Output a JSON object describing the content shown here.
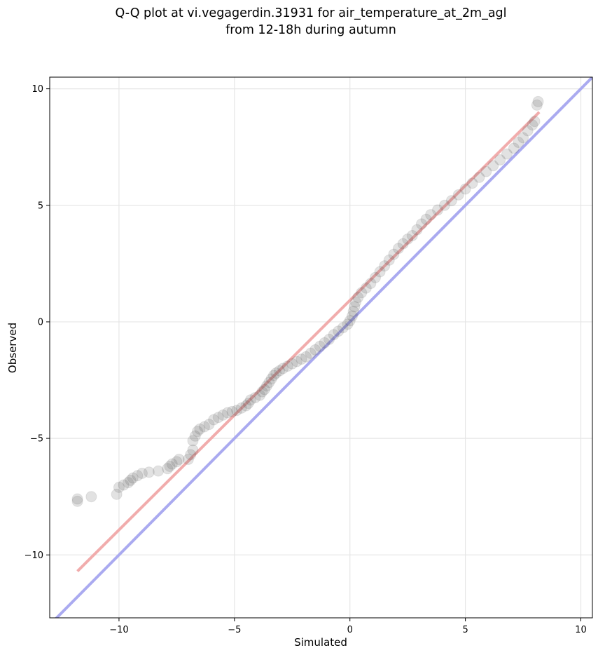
{
  "chart_data": {
    "type": "scatter",
    "title_line1": "Q-Q plot at vi.vegagerdin.31931 for air_temperature_at_2m_agl",
    "title_line2": "from 12-18h during autumn",
    "xlabel": "Simulated",
    "ylabel": "Observed",
    "xlim": [
      -13.0,
      10.5
    ],
    "ylim": [
      -12.7,
      10.5
    ],
    "x_ticks": [
      -10,
      -5,
      0,
      5,
      10
    ],
    "y_ticks": [
      -10,
      -5,
      0,
      5,
      10
    ],
    "x_tick_labels": [
      "−10",
      "−5",
      "0",
      "5",
      "10"
    ],
    "y_tick_labels": [
      "−10",
      "−5",
      "0",
      "5",
      "10"
    ],
    "grid": true,
    "identity_line": {
      "color": "#aaaaf0"
    },
    "fit_line": {
      "x": [
        -11.8,
        8.2
      ],
      "y": [
        -10.7,
        9.0
      ],
      "color": "#f0a8a8"
    },
    "point_color": "#555555",
    "quantiles": [
      {
        "x": -11.8,
        "y": -7.7
      },
      {
        "x": -11.8,
        "y": -7.6
      },
      {
        "x": -11.2,
        "y": -7.5
      },
      {
        "x": -10.1,
        "y": -7.4
      },
      {
        "x": -10.0,
        "y": -7.1
      },
      {
        "x": -9.8,
        "y": -7.0
      },
      {
        "x": -9.6,
        "y": -6.9
      },
      {
        "x": -9.5,
        "y": -6.8
      },
      {
        "x": -9.4,
        "y": -6.7
      },
      {
        "x": -9.2,
        "y": -6.6
      },
      {
        "x": -9.0,
        "y": -6.5
      },
      {
        "x": -8.7,
        "y": -6.45
      },
      {
        "x": -8.3,
        "y": -6.4
      },
      {
        "x": -7.9,
        "y": -6.3
      },
      {
        "x": -7.8,
        "y": -6.2
      },
      {
        "x": -7.7,
        "y": -6.1
      },
      {
        "x": -7.5,
        "y": -6.0
      },
      {
        "x": -7.4,
        "y": -5.9
      },
      {
        "x": -7.0,
        "y": -5.9
      },
      {
        "x": -6.9,
        "y": -5.7
      },
      {
        "x": -6.8,
        "y": -5.5
      },
      {
        "x": -6.8,
        "y": -5.1
      },
      {
        "x": -6.7,
        "y": -4.9
      },
      {
        "x": -6.6,
        "y": -4.7
      },
      {
        "x": -6.5,
        "y": -4.6
      },
      {
        "x": -6.3,
        "y": -4.5
      },
      {
        "x": -6.1,
        "y": -4.4
      },
      {
        "x": -5.9,
        "y": -4.2
      },
      {
        "x": -5.7,
        "y": -4.1
      },
      {
        "x": -5.5,
        "y": -4.0
      },
      {
        "x": -5.3,
        "y": -3.9
      },
      {
        "x": -5.1,
        "y": -3.85
      },
      {
        "x": -4.9,
        "y": -3.8
      },
      {
        "x": -4.7,
        "y": -3.7
      },
      {
        "x": -4.5,
        "y": -3.6
      },
      {
        "x": -4.4,
        "y": -3.5
      },
      {
        "x": -4.3,
        "y": -3.35
      },
      {
        "x": -4.1,
        "y": -3.25
      },
      {
        "x": -3.9,
        "y": -3.15
      },
      {
        "x": -3.8,
        "y": -3.0
      },
      {
        "x": -3.7,
        "y": -2.9
      },
      {
        "x": -3.6,
        "y": -2.75
      },
      {
        "x": -3.5,
        "y": -2.6
      },
      {
        "x": -3.4,
        "y": -2.45
      },
      {
        "x": -3.3,
        "y": -2.3
      },
      {
        "x": -3.2,
        "y": -2.2
      },
      {
        "x": -3.05,
        "y": -2.1
      },
      {
        "x": -2.9,
        "y": -2.0
      },
      {
        "x": -2.7,
        "y": -1.9
      },
      {
        "x": -2.5,
        "y": -1.8
      },
      {
        "x": -2.3,
        "y": -1.7
      },
      {
        "x": -2.1,
        "y": -1.6
      },
      {
        "x": -1.9,
        "y": -1.5
      },
      {
        "x": -1.7,
        "y": -1.35
      },
      {
        "x": -1.5,
        "y": -1.2
      },
      {
        "x": -1.3,
        "y": -1.05
      },
      {
        "x": -1.1,
        "y": -0.9
      },
      {
        "x": -0.9,
        "y": -0.75
      },
      {
        "x": -0.7,
        "y": -0.55
      },
      {
        "x": -0.5,
        "y": -0.4
      },
      {
        "x": -0.3,
        "y": -0.25
      },
      {
        "x": -0.1,
        "y": -0.1
      },
      {
        "x": 0.0,
        "y": 0.05
      },
      {
        "x": 0.1,
        "y": 0.25
      },
      {
        "x": 0.15,
        "y": 0.45
      },
      {
        "x": 0.2,
        "y": 0.65
      },
      {
        "x": 0.25,
        "y": 0.85
      },
      {
        "x": 0.35,
        "y": 1.05
      },
      {
        "x": 0.5,
        "y": 1.25
      },
      {
        "x": 0.7,
        "y": 1.45
      },
      {
        "x": 0.9,
        "y": 1.65
      },
      {
        "x": 1.1,
        "y": 1.9
      },
      {
        "x": 1.3,
        "y": 2.15
      },
      {
        "x": 1.5,
        "y": 2.4
      },
      {
        "x": 1.7,
        "y": 2.65
      },
      {
        "x": 1.9,
        "y": 2.9
      },
      {
        "x": 2.1,
        "y": 3.15
      },
      {
        "x": 2.3,
        "y": 3.35
      },
      {
        "x": 2.5,
        "y": 3.55
      },
      {
        "x": 2.7,
        "y": 3.7
      },
      {
        "x": 2.9,
        "y": 3.95
      },
      {
        "x": 3.1,
        "y": 4.2
      },
      {
        "x": 3.3,
        "y": 4.4
      },
      {
        "x": 3.5,
        "y": 4.6
      },
      {
        "x": 3.8,
        "y": 4.8
      },
      {
        "x": 4.1,
        "y": 5.0
      },
      {
        "x": 4.4,
        "y": 5.2
      },
      {
        "x": 4.7,
        "y": 5.45
      },
      {
        "x": 5.0,
        "y": 5.7
      },
      {
        "x": 5.3,
        "y": 5.95
      },
      {
        "x": 5.6,
        "y": 6.2
      },
      {
        "x": 5.9,
        "y": 6.45
      },
      {
        "x": 6.2,
        "y": 6.7
      },
      {
        "x": 6.5,
        "y": 6.95
      },
      {
        "x": 6.8,
        "y": 7.2
      },
      {
        "x": 7.1,
        "y": 7.45
      },
      {
        "x": 7.3,
        "y": 7.7
      },
      {
        "x": 7.5,
        "y": 7.9
      },
      {
        "x": 7.7,
        "y": 8.2
      },
      {
        "x": 7.9,
        "y": 8.45
      },
      {
        "x": 8.0,
        "y": 8.6
      },
      {
        "x": 8.1,
        "y": 9.3
      },
      {
        "x": 8.15,
        "y": 9.45
      }
    ]
  }
}
